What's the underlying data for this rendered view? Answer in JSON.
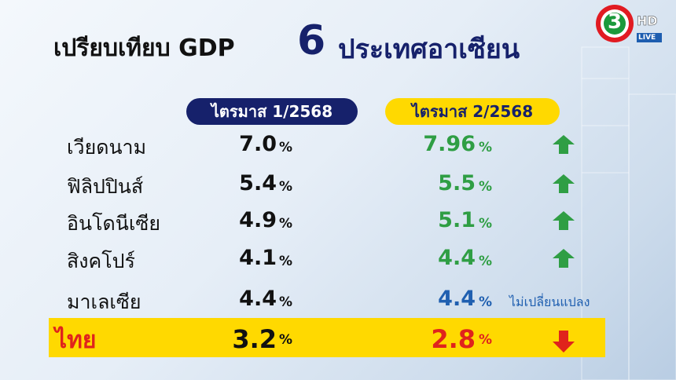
{
  "header": {
    "title": "เปรียบเทียบ GDP",
    "number": "6",
    "subject": "ประเทศอาเซียน"
  },
  "logo": {
    "number": "3",
    "hd": "HD",
    "live": "LIVE"
  },
  "table": {
    "columns": [
      "ไตรมาส 1/2568",
      "ไตรมาส 2/2568"
    ],
    "rows": [
      {
        "country": "เวียดนาม",
        "q1": {
          "value": "7.0",
          "unit": "%"
        },
        "q2": {
          "value": "7.96",
          "unit": "%"
        },
        "trend": "up"
      },
      {
        "country": "ฟิลิปปินส์",
        "q1": {
          "value": "5.4",
          "unit": "%"
        },
        "q2": {
          "value": "5.5",
          "unit": "%"
        },
        "trend": "up"
      },
      {
        "country": "อินโดนีเซีย",
        "q1": {
          "value": "4.9",
          "unit": "%"
        },
        "q2": {
          "value": "5.1",
          "unit": "%"
        },
        "trend": "up"
      },
      {
        "country": "สิงคโปร์",
        "q1": {
          "value": "4.1",
          "unit": "%"
        },
        "q2": {
          "value": "4.4",
          "unit": "%"
        },
        "trend": "up"
      },
      {
        "country": "มาเลเซีย",
        "q1": {
          "value": "4.4",
          "unit": "%"
        },
        "q2": {
          "value": "4.4",
          "unit": "%"
        },
        "trend": "same",
        "note": "ไม่เปลี่ยนแปลง"
      },
      {
        "country": "ไทย",
        "q1": {
          "value": "3.2",
          "unit": "%"
        },
        "q2": {
          "value": "2.8",
          "unit": "%"
        },
        "trend": "down",
        "highlight": true
      }
    ]
  }
}
